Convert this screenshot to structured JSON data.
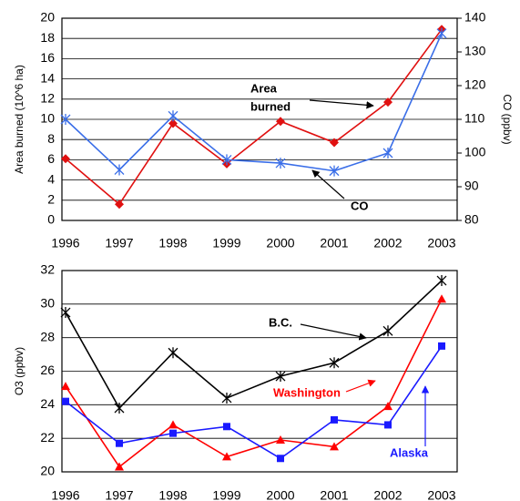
{
  "charts": [
    {
      "chart_data": {
        "type": "line",
        "ylabel": "Area burned (10^6 ha)",
        "y2label": "CO (ppbv)",
        "categories": [
          "1996",
          "1997",
          "1998",
          "1999",
          "2000",
          "2001",
          "2002",
          "2003"
        ],
        "ylim": [
          0,
          20
        ],
        "yticks": [
          0,
          2,
          4,
          6,
          8,
          10,
          12,
          14,
          16,
          18,
          20
        ],
        "y2lim": [
          80,
          140
        ],
        "y2ticks": [
          80,
          90,
          100,
          110,
          120,
          130,
          140
        ],
        "grid": true,
        "series": [
          {
            "name": "Area burned",
            "color": "#e01010",
            "marker": "diamond",
            "values": [
              6.1,
              1.6,
              9.6,
              5.6,
              9.8,
              7.7,
              11.7,
              18.9
            ]
          },
          {
            "name": "CO",
            "color": "#3a6ee8",
            "marker": "star",
            "axis": "y2",
            "values": [
              110,
              95,
              111,
              98,
              97,
              94.7,
              100,
              135.5
            ]
          }
        ],
        "annotations": [
          {
            "lines": [
              "Area",
              "burned"
            ]
          },
          {
            "lines": [
              "CO"
            ]
          }
        ]
      }
    },
    {
      "chart_data": {
        "type": "line",
        "ylabel": "O3 (ppbv)",
        "categories": [
          "1996",
          "1997",
          "1998",
          "1999",
          "2000",
          "2001",
          "2002",
          "2003"
        ],
        "ylim": [
          20,
          32
        ],
        "yticks": [
          20,
          22,
          24,
          26,
          28,
          30,
          32
        ],
        "grid": true,
        "series": [
          {
            "name": "B.C.",
            "color": "#000000",
            "marker": "star",
            "values": [
              29.5,
              23.8,
              27.1,
              24.4,
              25.7,
              26.5,
              28.4,
              31.4
            ]
          },
          {
            "name": "Washington",
            "color": "#ff0000",
            "marker": "triangle",
            "values": [
              25.1,
              20.3,
              22.8,
              20.9,
              21.9,
              21.5,
              23.9,
              30.3
            ]
          },
          {
            "name": "Alaska",
            "color": "#1a1aff",
            "marker": "square",
            "values": [
              24.2,
              21.7,
              22.3,
              22.7,
              20.8,
              23.1,
              22.8,
              27.5
            ]
          }
        ],
        "annotations": [
          {
            "lines": [
              "B.C."
            ]
          },
          {
            "lines": [
              "Washington"
            ]
          },
          {
            "lines": [
              "Alaska"
            ]
          }
        ]
      }
    }
  ]
}
